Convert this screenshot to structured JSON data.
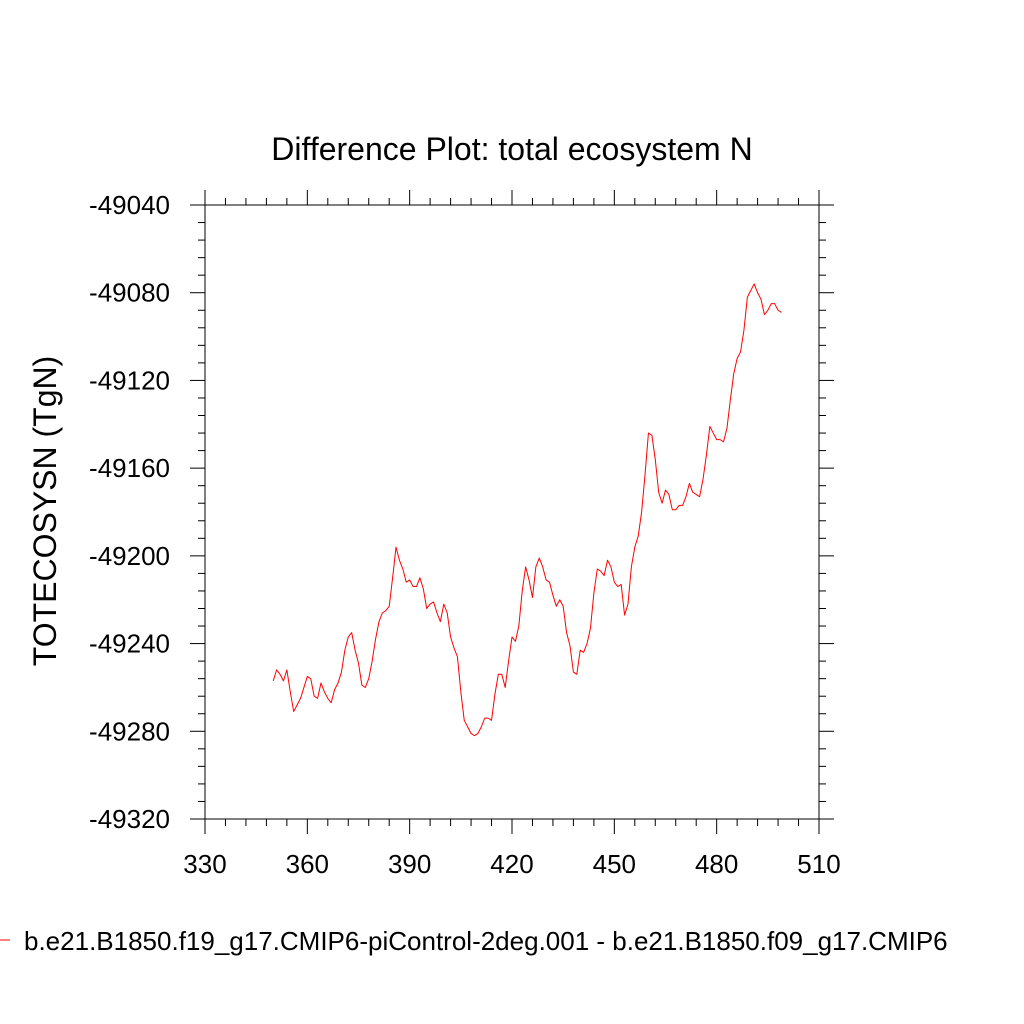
{
  "chart_data": {
    "type": "line",
    "title": "Difference Plot: total ecosystem N",
    "xlabel": "",
    "ylabel": "TOTECOSYSN  (TgN)",
    "xlim": [
      330,
      510
    ],
    "ylim": [
      -49320,
      -49040
    ],
    "xticks": [
      330,
      360,
      390,
      420,
      450,
      480,
      510
    ],
    "yticks": [
      -49040,
      -49080,
      -49120,
      -49160,
      -49200,
      -49240,
      -49280,
      -49320
    ],
    "xtick_labels": [
      "330",
      "360",
      "390",
      "420",
      "450",
      "480",
      "510"
    ],
    "ytick_labels": [
      "-49040",
      "-49080",
      "-49120",
      "-49160",
      "-49200",
      "-49240",
      "-49280",
      "-49320"
    ],
    "grid": false,
    "legend_position": "bottom",
    "series": [
      {
        "name": "b.e21.B1850.f19_g17.CMIP6-piControl-2deg.001 - b.e21.B1850.f09_g17.CMIP6",
        "color": "#ff0000",
        "x": [
          350,
          351,
          352,
          353,
          354,
          355,
          356,
          357,
          358,
          359,
          360,
          361,
          362,
          363,
          364,
          365,
          366,
          367,
          368,
          369,
          370,
          371,
          372,
          373,
          374,
          375,
          376,
          377,
          378,
          379,
          380,
          381,
          382,
          383,
          384,
          385,
          386,
          387,
          388,
          389,
          390,
          391,
          392,
          393,
          394,
          395,
          396,
          397,
          398,
          399,
          400,
          401,
          402,
          403,
          404,
          405,
          406,
          407,
          408,
          409,
          410,
          411,
          412,
          413,
          414,
          415,
          416,
          417,
          418,
          419,
          420,
          421,
          422,
          423,
          424,
          425,
          426,
          427,
          428,
          429,
          430,
          431,
          432,
          433,
          434,
          435,
          436,
          437,
          438,
          439,
          440,
          441,
          442,
          443,
          444,
          445,
          446,
          447,
          448,
          449,
          450,
          451,
          452,
          453,
          454,
          455,
          456,
          457,
          458,
          459,
          460,
          461,
          462,
          463,
          464,
          465,
          466,
          467,
          468,
          469,
          470,
          471,
          472,
          473,
          474,
          475,
          476,
          477,
          478,
          479,
          480,
          481,
          482,
          483,
          484,
          485,
          486,
          487,
          488,
          489,
          490,
          491,
          492,
          493,
          494,
          495,
          496,
          497,
          498,
          499
        ],
        "y": [
          -49257,
          -49252,
          -49254,
          -49257,
          -49252,
          -49262,
          -49271,
          -49268,
          -49265,
          -49260,
          -49255,
          -49256,
          -49264,
          -49265,
          -49258,
          -49262,
          -49265,
          -49267,
          -49261,
          -49258,
          -49253,
          -49243,
          -49237,
          -49235,
          -49243,
          -49249,
          -49259,
          -49260,
          -49256,
          -49248,
          -49238,
          -49230,
          -49226,
          -49225,
          -49223,
          -49210,
          -49196,
          -49202,
          -49206,
          -49212,
          -49211,
          -49214,
          -49214,
          -49210,
          -49215,
          -49224,
          -49222,
          -49221,
          -49226,
          -49230,
          -49222,
          -49226,
          -49237,
          -49242,
          -49246,
          -49262,
          -49275,
          -49278,
          -49281,
          -49282,
          -49281,
          -49278,
          -49274,
          -49274,
          -49275,
          -49263,
          -49254,
          -49254,
          -49260,
          -49248,
          -49237,
          -49239,
          -49232,
          -49216,
          -49205,
          -49211,
          -49219,
          -49205,
          -49201,
          -49205,
          -49211,
          -49212,
          -49218,
          -49223,
          -49220,
          -49223,
          -49235,
          -49241,
          -49253,
          -49254,
          -49243,
          -49244,
          -49240,
          -49233,
          -49217,
          -49206,
          -49207,
          -49209,
          -49202,
          -49205,
          -49212,
          -49214,
          -49213,
          -49227,
          -49222,
          -49205,
          -49196,
          -49191,
          -49180,
          -49163,
          -49144,
          -49145,
          -49156,
          -49171,
          -49176,
          -49170,
          -49172,
          -49179,
          -49179,
          -49177,
          -49177,
          -49173,
          -49167,
          -49171,
          -49172,
          -49173,
          -49165,
          -49154,
          -49141,
          -49144,
          -49147,
          -49147,
          -49148,
          -49142,
          -49129,
          -49117,
          -49110,
          -49107,
          -49097,
          -49082,
          -49079,
          -49076,
          -49080,
          -49083,
          -49090,
          -49088,
          -49085,
          -49085,
          -49088,
          -49089
        ]
      }
    ]
  }
}
